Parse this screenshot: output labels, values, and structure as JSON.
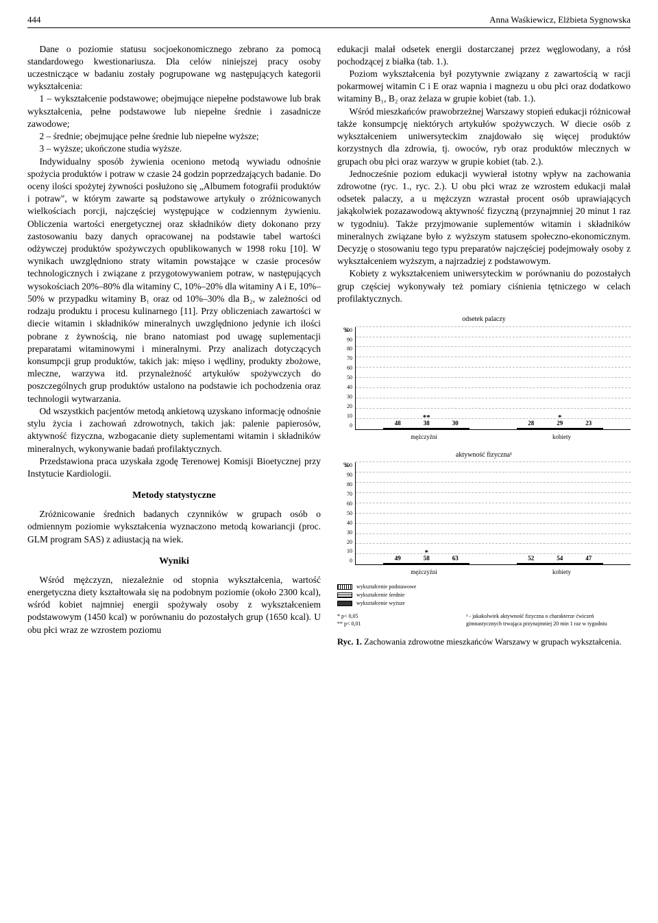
{
  "header": {
    "page_number": "444",
    "authors": "Anna Waśkiewicz, Elżbieta Sygnowska"
  },
  "left": {
    "p1": "Dane o poziomie statusu socjoekonomicznego zebrano za pomocą standardowego kwestionariusza. Dla celów niniejszej pracy osoby uczestniczące w badaniu zostały pogrupowane wg następujących kategorii wykształcenia:",
    "li1": "1 – wykształcenie podstawowe; obejmujące niepełne podstawowe lub brak wykształcenia, pełne podstawowe lub niepełne średnie i zasadnicze zawodowe;",
    "li2": "2 – średnie; obejmujące pełne średnie lub niepełne wyższe;",
    "li3": "3 – wyższe; ukończone studia wyższe.",
    "p2": "Indywidualny sposób żywienia oceniono metodą wywiadu odnośnie spożycia produktów i potraw w czasie 24 godzin poprzedzających badanie. Do oceny ilości spożytej żywności posłużono się „Albumem fotografii produktów i potraw\", w którym zawarte są podstawowe artykuły o zróżnicowanych wielkościach porcji, najczęściej występujące w codziennym żywieniu. Obliczenia wartości energetycznej oraz składników diety dokonano przy zastosowaniu bazy danych opracowanej na podstawie tabel wartości odżywczej produktów spożywczych opublikowanych w 1998 roku [10]. W wynikach uwzględniono straty witamin powstające w czasie procesów technologicznych i związane z przygotowywaniem potraw, w następujących wysokościach 20%–80% dla witaminy C, 10%–20% dla witaminy A i E, 10%–50% w przypadku witaminy B₁ oraz od 10%–30% dla B₂, w zależności od rodzaju produktu i procesu kulinarnego [11]. Przy obliczeniach zawartości w diecie witamin i składników mineralnych uwzględniono jedynie ich ilości pobrane z żywnością, nie brano natomiast pod uwagę suplementacji preparatami witaminowymi i mineralnymi. Przy analizach dotyczących konsumpcji grup produktów, takich jak: mięso i wędliny, produkty zbożowe, mleczne, warzywa itd. przynależność artykułów spożywczych do poszczególnych grup produktów ustalono na podstawie ich pochodzenia oraz technologii wytwarzania.",
    "p3": "Od wszystkich pacjentów metodą ankietową uzyskano informację odnośnie stylu życia i zachowań zdrowotnych, takich jak: palenie papierosów, aktywność fizyczna, wzbogacanie diety suplementami witamin i składników mineralnych, wykonywanie badań profilaktycznych.",
    "p4": "Przedstawiona praca uzyskała zgodę Terenowej Komisji Bioetycznej przy Instytucie Kardiologii.",
    "h_methods": "Metody statystyczne",
    "p5": "Zróżnicowanie średnich badanych czynników w grupach osób o odmiennym poziomie wykształcenia wyznaczono metodą kowariancji (proc. GLM program SAS) z adiustacją na wiek.",
    "h_results": "Wyniki",
    "p6": "Wśród mężczyzn, niezależnie od stopnia wykształcenia, wartość energetyczna diety kształtowała się na podobnym poziomie (około 2300 kcal), wśród kobiet najmniej energii spożywały osoby z wykształceniem podstawowym (1450 kcal) w porównaniu do pozostałych grup (1650 kcal). U obu płci wraz ze wzrostem poziomu"
  },
  "right": {
    "p1": "edukacji malał odsetek energii dostarczanej przez węglowodany, a rósł pochodzącej z białka (tab. 1.).",
    "p2": "Poziom wykształcenia był pozytywnie związany z zawartością w racji pokarmowej witamin C i E oraz wapnia i magnezu u obu płci oraz dodatkowo witaminy B₁, B₂ oraz żelaza w grupie kobiet (tab. 1.).",
    "p3": "Wśród mieszkańców prawobrzeżnej Warszawy stopień edukacji różnicował także konsumpcję niektórych artykułów spożywczych. W diecie osób z wykształceniem uniwersyteckim znajdowało się więcej produktów korzystnych dla zdrowia, tj. owoców, ryb oraz produktów mlecznych w grupach obu płci oraz warzyw w grupie kobiet (tab. 2.).",
    "p4": "Jednocześnie poziom edukacji wywierał istotny wpływ na zachowania zdrowotne (ryc. 1., ryc. 2.). U obu płci wraz ze wzrostem edukacji malał odsetek palaczy, a u mężczyzn wzrastał procent osób uprawiających jakąkolwiek pozazawodową aktywność fizyczną (przynajmniej 20 minut 1 raz w tygodniu). Także przyjmowanie suplementów witamin i składników mineralnych związane było z wyższym statusem społeczno-ekonomicznym. Decyzję o stosowaniu tego typu preparatów najczęściej podejmowały osoby z wykształceniem wyższym, a najrzadziej z podstawowym.",
    "p5": "Kobiety z wykształceniem uniwersyteckim w porównaniu do pozostałych grup częściej wykonywały też pomiary ciśnienia tętniczego w celach profilaktycznych."
  },
  "charts": {
    "y_ticks": [
      0,
      10,
      20,
      30,
      40,
      50,
      60,
      70,
      80,
      90,
      100
    ],
    "y_max": 100,
    "grid_color": "#bbbbbb",
    "bar_border": "#000000",
    "patterns": [
      "vert",
      "horiz",
      "solid"
    ],
    "x_groups": [
      "mężczyźni",
      "kobiety"
    ],
    "chart1": {
      "title": "odsetek palaczy",
      "men": [
        48,
        38,
        30
      ],
      "women": [
        28,
        29,
        23
      ],
      "sig_men": "**",
      "sig_women": "*"
    },
    "chart2": {
      "title": "aktywność fizyczna¹",
      "men": [
        49,
        58,
        63
      ],
      "women": [
        52,
        54,
        47
      ],
      "sig_men": "*",
      "sig_women": ""
    },
    "legend": {
      "l1": "wykształcenie podstawowe",
      "l2": "wykształcenie średnie",
      "l3": "wykształcenie wyższe"
    },
    "footnotes": {
      "p005": "*  p< 0,05",
      "p001": "** p< 0,01",
      "note1": "¹ - jakakolwiek aktywność fizyczna o charakterze ćwiczeń gimnastycznych trwająca przynajmniej 20 min 1 raz w tygodniu"
    },
    "caption": "Ryc. 1. Zachowania zdrowotne mieszkańców Warszawy w grupach wykształcenia.",
    "caption_bold": "Ryc. 1."
  }
}
